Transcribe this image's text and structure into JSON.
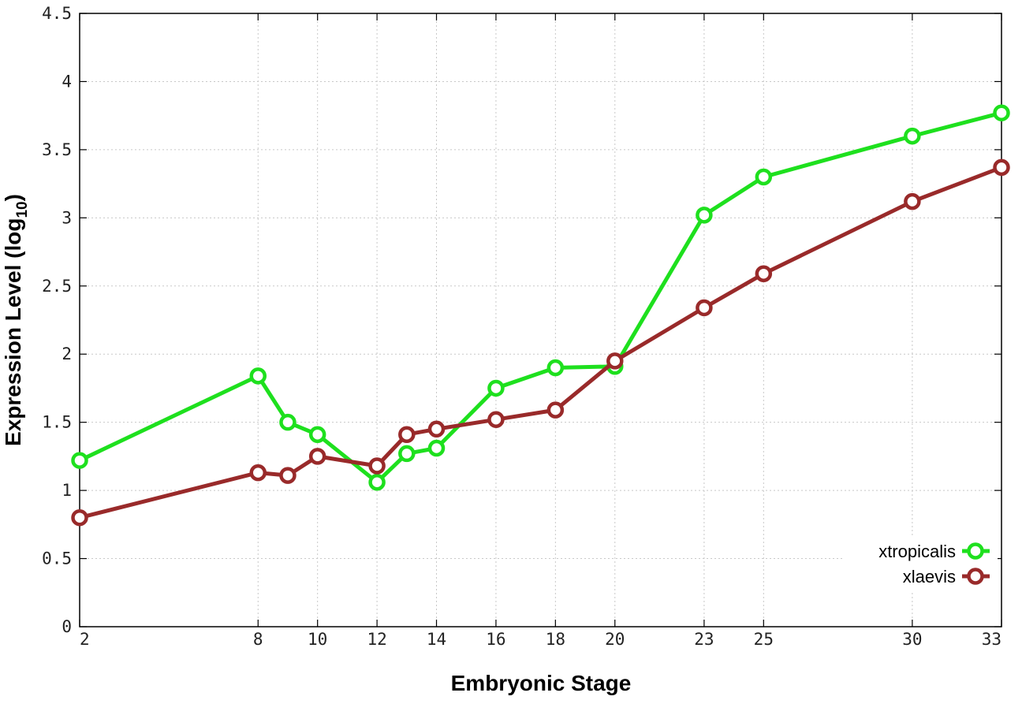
{
  "chart_data": {
    "type": "line",
    "title": "",
    "xlabel": "Embryonic Stage",
    "ylabel_main": "Expression Level (log",
    "ylabel_sub": "10",
    "ylabel_close": ")",
    "x_ticks": [
      "2",
      "8",
      "10",
      "12",
      "14",
      "16",
      "18",
      "20",
      "23",
      "25",
      "30",
      "33"
    ],
    "y_ticks": [
      "0",
      "0.5",
      "1",
      "1.5",
      "2",
      "2.5",
      "3",
      "3.5",
      "4",
      "4.5"
    ],
    "xlim": [
      2,
      33
    ],
    "ylim": [
      0,
      4.5
    ],
    "grid": true,
    "legend_position": "bottom-right",
    "x": [
      2,
      8,
      9,
      10,
      12,
      13,
      14,
      16,
      18,
      20,
      23,
      25,
      30,
      33
    ],
    "series": [
      {
        "name": "xtropicalis",
        "color": "#1ee01e",
        "values": [
          1.22,
          1.84,
          1.5,
          1.41,
          1.06,
          1.27,
          1.31,
          1.75,
          1.9,
          1.91,
          3.02,
          3.3,
          3.6,
          3.77
        ]
      },
      {
        "name": "xlaevis",
        "color": "#992a2a",
        "values": [
          0.8,
          1.13,
          1.11,
          1.25,
          1.18,
          1.41,
          1.45,
          1.52,
          1.59,
          1.95,
          2.34,
          2.59,
          3.12,
          3.37
        ]
      }
    ]
  }
}
